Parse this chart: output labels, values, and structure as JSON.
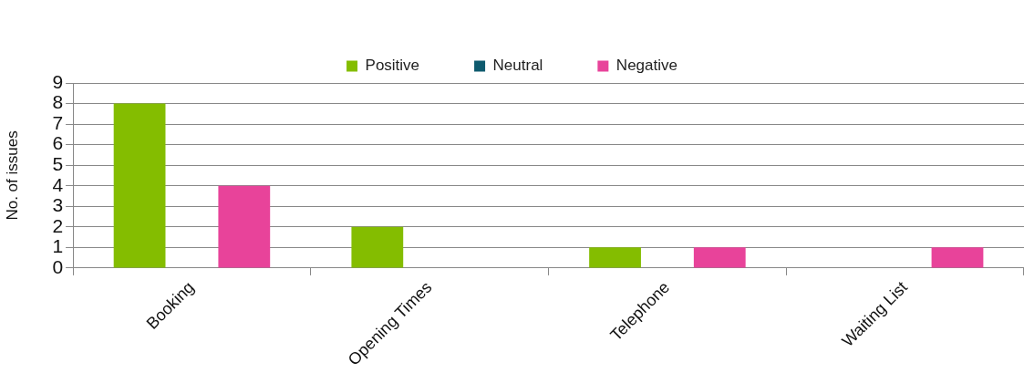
{
  "chart_data": {
    "type": "bar",
    "ylabel": "No. of issues",
    "categories": [
      "Booking",
      "Opening Times",
      "Telephone",
      "Waiting List"
    ],
    "series": [
      {
        "name": "Positive",
        "color": "#84bd00",
        "values": [
          8,
          2,
          1,
          0
        ]
      },
      {
        "name": "Neutral",
        "color": "#0e5a6e",
        "values": [
          0,
          0,
          0,
          0
        ]
      },
      {
        "name": "Negative",
        "color": "#e8439a",
        "values": [
          4,
          0,
          1,
          1
        ]
      }
    ],
    "ylim": [
      0,
      9
    ],
    "yticks": [
      0,
      1,
      2,
      3,
      4,
      5,
      6,
      7,
      8,
      9
    ],
    "grid": "y",
    "legend": "top"
  }
}
